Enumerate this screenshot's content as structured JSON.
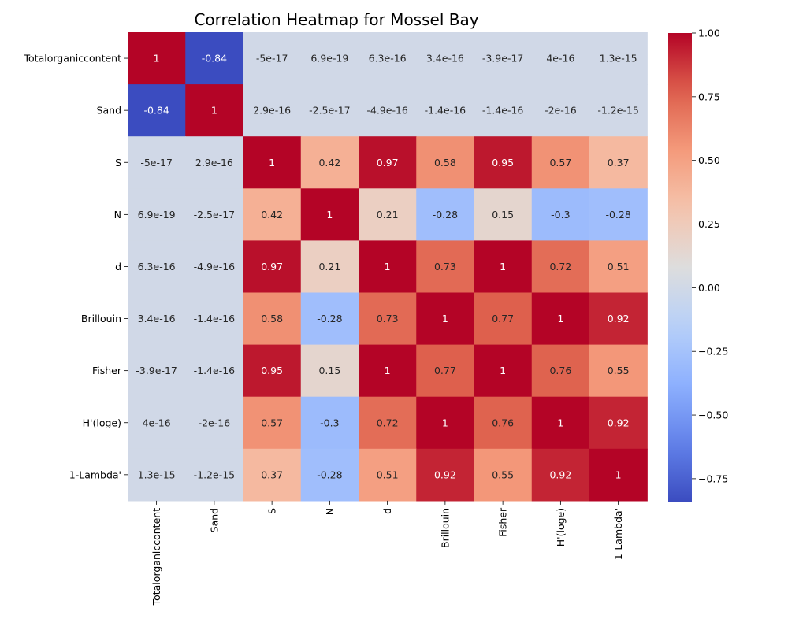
{
  "chart_data": {
    "type": "heatmap",
    "title": "Correlation Heatmap for Mossel Bay",
    "xlabel": "",
    "ylabel": "",
    "colormap": "coolwarm",
    "vmin": -0.84,
    "vmax": 1.0,
    "row_labels": [
      "Totalorganiccontent",
      "Sand",
      "S",
      "N",
      "d",
      "Brillouin",
      "Fisher",
      "H'(loge)",
      "1-Lambda'"
    ],
    "col_labels": [
      "Totalorganiccontent",
      "Sand",
      "S",
      "N",
      "d",
      "Brillouin",
      "Fisher",
      "H'(loge)",
      "1-Lambda'"
    ],
    "values": [
      [
        1,
        -0.84,
        -5e-17,
        6.9e-19,
        6.3e-16,
        3.4e-16,
        -3.9e-17,
        4e-16,
        1.3e-15
      ],
      [
        -0.84,
        1,
        2.9e-16,
        -2.5e-17,
        -4.9e-16,
        -1.4e-16,
        -1.4e-16,
        -2e-16,
        -1.2e-15
      ],
      [
        -5e-17,
        2.9e-16,
        1,
        0.42,
        0.97,
        0.58,
        0.95,
        0.57,
        0.37
      ],
      [
        6.9e-19,
        -2.5e-17,
        0.42,
        1,
        0.21,
        -0.28,
        0.15,
        -0.3,
        -0.28
      ],
      [
        6.3e-16,
        -4.9e-16,
        0.97,
        0.21,
        1,
        0.73,
        1,
        0.72,
        0.51
      ],
      [
        3.4e-16,
        -1.4e-16,
        0.58,
        -0.28,
        0.73,
        1,
        0.77,
        1,
        0.92
      ],
      [
        -3.9e-17,
        -1.4e-16,
        0.95,
        0.15,
        1,
        0.77,
        1,
        0.76,
        0.55
      ],
      [
        4e-16,
        -2e-16,
        0.57,
        -0.3,
        0.72,
        1,
        0.76,
        1,
        0.92
      ],
      [
        1.3e-15,
        -1.2e-15,
        0.37,
        -0.28,
        0.51,
        0.92,
        0.55,
        0.92,
        1
      ]
    ],
    "annotations": [
      [
        "1",
        "-0.84",
        "-5e-17",
        "6.9e-19",
        "6.3e-16",
        "3.4e-16",
        "-3.9e-17",
        "4e-16",
        "1.3e-15"
      ],
      [
        "-0.84",
        "1",
        "2.9e-16",
        "-2.5e-17",
        "-4.9e-16",
        "-1.4e-16",
        "-1.4e-16",
        "-2e-16",
        "-1.2e-15"
      ],
      [
        "-5e-17",
        "2.9e-16",
        "1",
        "0.42",
        "0.97",
        "0.58",
        "0.95",
        "0.57",
        "0.37"
      ],
      [
        "6.9e-19",
        "-2.5e-17",
        "0.42",
        "1",
        "0.21",
        "-0.28",
        "0.15",
        "-0.3",
        "-0.28"
      ],
      [
        "6.3e-16",
        "-4.9e-16",
        "0.97",
        "0.21",
        "1",
        "0.73",
        "1",
        "0.72",
        "0.51"
      ],
      [
        "3.4e-16",
        "-1.4e-16",
        "0.58",
        "-0.28",
        "0.73",
        "1",
        "0.77",
        "1",
        "0.92"
      ],
      [
        "-3.9e-17",
        "-1.4e-16",
        "0.95",
        "0.15",
        "1",
        "0.77",
        "1",
        "0.76",
        "0.55"
      ],
      [
        "4e-16",
        "-2e-16",
        "0.57",
        "-0.3",
        "0.72",
        "1",
        "0.76",
        "1",
        "0.92"
      ],
      [
        "1.3e-15",
        "-1.2e-15",
        "0.37",
        "-0.28",
        "0.51",
        "0.92",
        "0.55",
        "0.92",
        "1"
      ]
    ],
    "colorbar_ticks": [
      1.0,
      0.75,
      0.5,
      0.25,
      0.0,
      -0.25,
      -0.5,
      -0.75
    ],
    "colorbar_tick_labels": [
      "1.00",
      "0.75",
      "0.50",
      "0.25",
      "0.00",
      "−0.25",
      "−0.50",
      "−0.75"
    ]
  }
}
